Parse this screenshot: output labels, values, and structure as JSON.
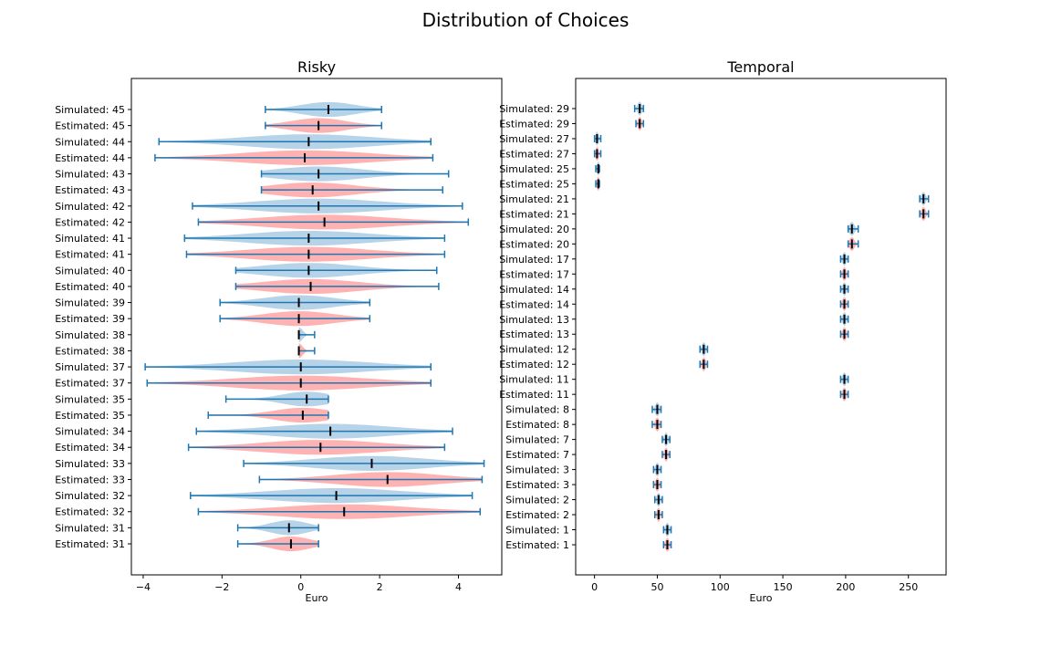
{
  "suptitle": "Distribution of Choices",
  "colors": {
    "simulated": "#1f77b4",
    "estimated": "#ff7f7f",
    "median": "#000000",
    "errbar": "#1f77b4"
  },
  "chart_data": [
    {
      "type": "violin",
      "title": "Risky",
      "xlabel": "Euro",
      "xlim": [
        -4.3,
        5.1
      ],
      "xticks": [
        -4,
        -2,
        0,
        2,
        4
      ],
      "categories": [
        "Simulated: 45",
        "Estimated: 45",
        "Simulated: 44",
        "Estimated: 44",
        "Simulated: 43",
        "Estimated: 43",
        "Simulated: 42",
        "Estimated: 42",
        "Simulated: 41",
        "Estimated: 41",
        "Simulated: 40",
        "Estimated: 40",
        "Simulated: 39",
        "Estimated: 39",
        "Simulated: 38",
        "Estimated: 38",
        "Simulated: 37",
        "Estimated: 37",
        "Simulated: 35",
        "Estimated: 35",
        "Simulated: 34",
        "Estimated: 34",
        "Simulated: 33",
        "Estimated: 33",
        "Simulated: 32",
        "Estimated: 32",
        "Simulated: 31",
        "Estimated: 31"
      ],
      "min": [
        -0.9,
        -0.9,
        -3.6,
        -3.7,
        -1.0,
        -1.0,
        -2.75,
        -2.6,
        -2.95,
        -2.9,
        -1.65,
        -1.65,
        -2.05,
        -2.05,
        -0.05,
        -0.05,
        -3.95,
        -3.9,
        -1.9,
        -2.35,
        -2.65,
        -2.85,
        -1.45,
        -1.05,
        -2.8,
        -2.6,
        -1.6,
        -1.6
      ],
      "median": [
        0.7,
        0.45,
        0.2,
        0.1,
        0.45,
        0.3,
        0.45,
        0.6,
        0.2,
        0.2,
        0.2,
        0.25,
        -0.05,
        -0.05,
        -0.05,
        -0.05,
        0.0,
        0.0,
        0.15,
        0.05,
        0.75,
        0.5,
        1.8,
        2.2,
        0.9,
        1.1,
        -0.3,
        -0.25
      ],
      "max": [
        2.05,
        2.05,
        3.3,
        3.35,
        3.75,
        3.6,
        4.1,
        4.25,
        3.65,
        3.65,
        3.45,
        3.5,
        1.75,
        1.75,
        0.35,
        0.35,
        3.3,
        3.3,
        0.7,
        0.7,
        3.85,
        3.65,
        4.65,
        4.6,
        4.35,
        4.55,
        0.45,
        0.45
      ]
    },
    {
      "type": "violin",
      "title": "Temporal",
      "xlabel": "Euro",
      "xlim": [
        -15,
        280
      ],
      "xticks": [
        0,
        50,
        100,
        150,
        200,
        250
      ],
      "categories": [
        "Simulated: 29",
        "Estimated: 29",
        "Simulated: 27",
        "Estimated: 27",
        "Simulated: 25",
        "Estimated: 25",
        "Simulated: 21",
        "Estimated: 21",
        "Simulated: 20",
        "Estimated: 20",
        "Simulated: 17",
        "Estimated: 17",
        "Simulated: 14",
        "Estimated: 14",
        "Simulated: 13",
        "Estimated: 13",
        "Simulated: 12",
        "Estimated: 12",
        "Simulated: 11",
        "Estimated: 11",
        "Simulated: 8",
        "Estimated: 8",
        "Simulated: 7",
        "Estimated: 7",
        "Simulated: 3",
        "Estimated: 3",
        "Simulated: 2",
        "Estimated: 2",
        "Simulated: 1",
        "Estimated: 1"
      ],
      "min": [
        32,
        33,
        0,
        0,
        1,
        1,
        259,
        259,
        202,
        202,
        196,
        196,
        196,
        196,
        196,
        196,
        84,
        84,
        196,
        196,
        46,
        46,
        54,
        54,
        47,
        47,
        48,
        48,
        55,
        55
      ],
      "median": [
        36,
        36,
        2,
        2,
        3,
        3,
        262,
        262,
        205,
        205,
        199,
        199,
        199,
        199,
        199,
        199,
        87,
        87,
        199,
        199,
        50,
        50,
        57,
        57,
        50,
        50,
        51,
        51,
        58,
        58
      ],
      "max": [
        39,
        39,
        5,
        5,
        4,
        4,
        266,
        266,
        210,
        210,
        202,
        202,
        202,
        202,
        202,
        202,
        90,
        90,
        202,
        202,
        53,
        53,
        60,
        60,
        53,
        53,
        54,
        54,
        61,
        61
      ]
    }
  ]
}
